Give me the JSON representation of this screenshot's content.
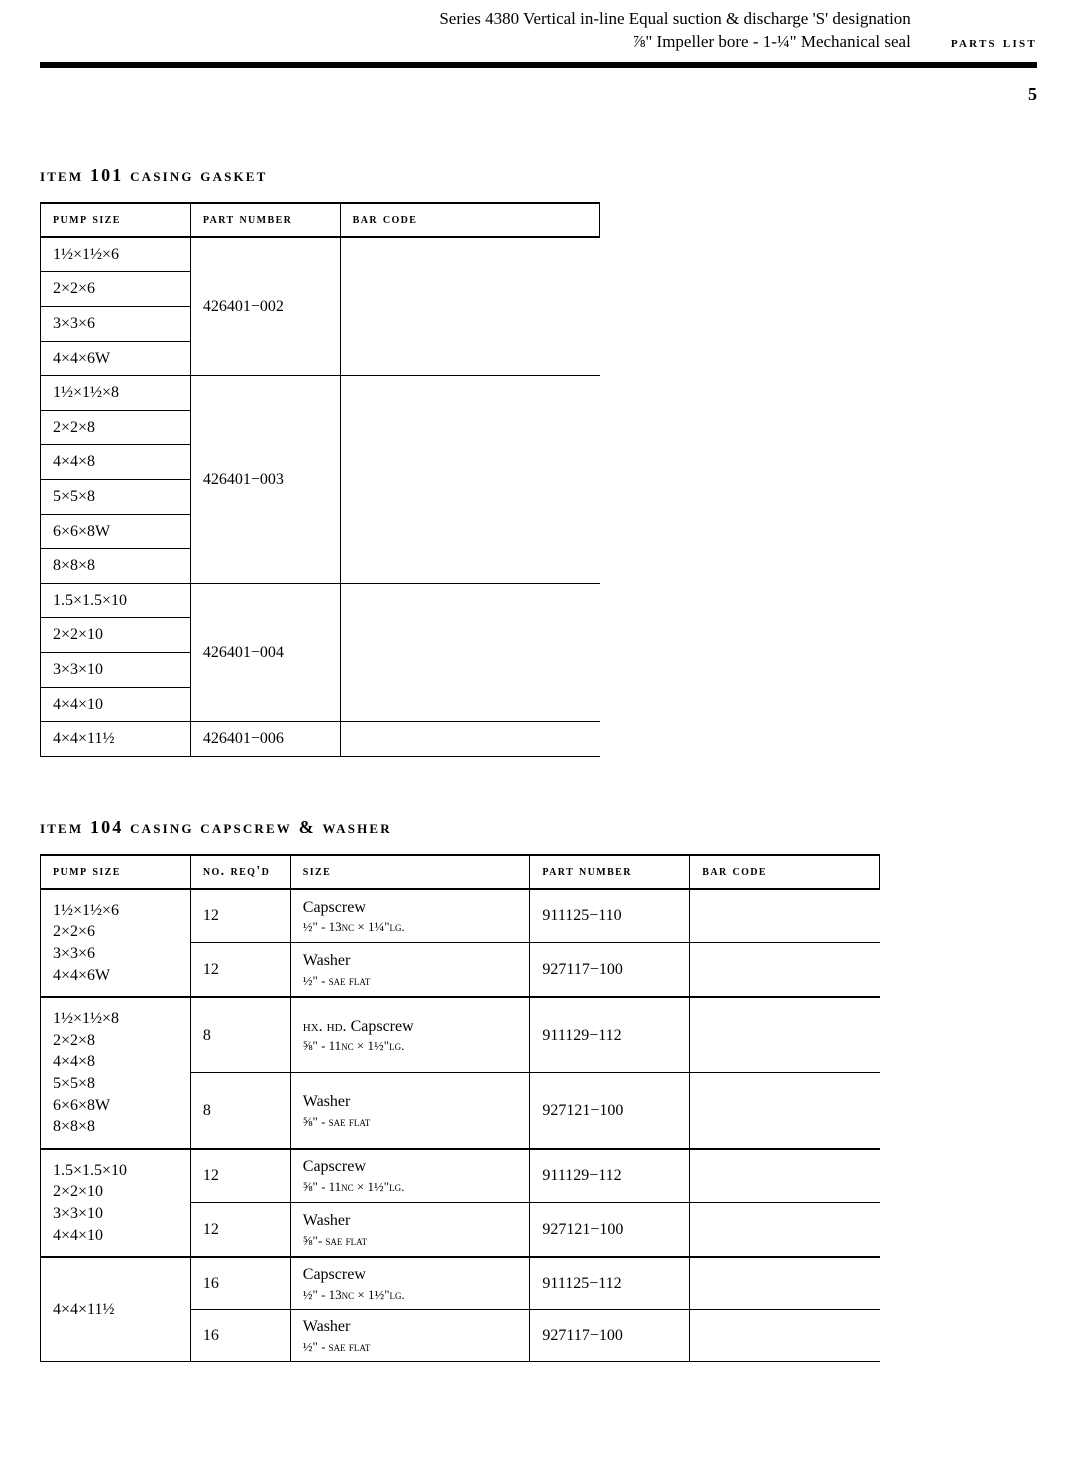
{
  "header": {
    "line1": "Series 4380 Vertical in-line Equal suction & discharge 'S' designation",
    "line2": "⅞\" Impeller bore - 1-¼\" Mechanical seal",
    "parts_list": "parts list",
    "page_number": "5"
  },
  "t1": {
    "title": "item 101 casing gasket",
    "headers": {
      "c1": "pump size",
      "c2": "part number",
      "c3": "bar code"
    },
    "groups": [
      {
        "sizes": [
          "1½×1½×6",
          "2×2×6",
          "3×3×6",
          "4×4×6W"
        ],
        "part": "426401−002",
        "bar": ""
      },
      {
        "sizes": [
          "1½×1½×8",
          "2×2×8",
          "4×4×8",
          "5×5×8",
          "6×6×8W",
          "8×8×8"
        ],
        "part": "426401−003",
        "bar": ""
      },
      {
        "sizes": [
          "1.5×1.5×10",
          "2×2×10",
          "3×3×10",
          "4×4×10"
        ],
        "part": "426401−004",
        "bar": ""
      },
      {
        "sizes": [
          "4×4×11½"
        ],
        "part": "426401−006",
        "bar": ""
      }
    ]
  },
  "t2": {
    "title": "item 104 casing capscrew & washer",
    "headers": {
      "c1": "pump size",
      "c2": "no. req'd",
      "c3": "size",
      "c4": "part number",
      "c5": "bar code"
    },
    "groups": [
      {
        "sizes": "1½×1½×6\n2×2×6\n3×3×6\n4×4×6W",
        "rows": [
          {
            "qty": "12",
            "desc": "Capscrew",
            "spec": "½\" - 13nc × 1¼\"lg.",
            "part": "911125−110",
            "bar": ""
          },
          {
            "qty": "12",
            "desc": "Washer",
            "spec": "½\" - sae flat",
            "part": "927117−100",
            "bar": ""
          }
        ]
      },
      {
        "sizes": "1½×1½×8\n2×2×8\n4×4×8\n5×5×8\n6×6×8W\n8×8×8",
        "rows": [
          {
            "qty": "8",
            "desc": "hx. hd. Capscrew",
            "desc_sc": true,
            "spec": "⅝\" - 11nc × 1½\"lg.",
            "part": "911129−112",
            "bar": ""
          },
          {
            "qty": "8",
            "desc": "Washer",
            "spec": "⅝\" - sae flat",
            "part": "927121−100",
            "bar": ""
          }
        ]
      },
      {
        "sizes": "1.5×1.5×10\n2×2×10\n3×3×10\n4×4×10",
        "rows": [
          {
            "qty": "12",
            "desc": "Capscrew",
            "spec": "⅝\" - 11nc × 1½\"lg.",
            "part": "911129−112",
            "bar": ""
          },
          {
            "qty": "12",
            "desc": "Washer",
            "spec": "⅝\"- sae flat",
            "part": "927121−100",
            "bar": ""
          }
        ]
      },
      {
        "sizes": "4×4×11½",
        "rows": [
          {
            "qty": "16",
            "desc": "Capscrew",
            "spec": "½\" - 13nc × 1½\"lg.",
            "part": "911125−112",
            "bar": ""
          },
          {
            "qty": "16",
            "desc": "Washer",
            "spec": "½\" - sae flat",
            "part": "927117−100",
            "bar": ""
          }
        ]
      }
    ]
  }
}
